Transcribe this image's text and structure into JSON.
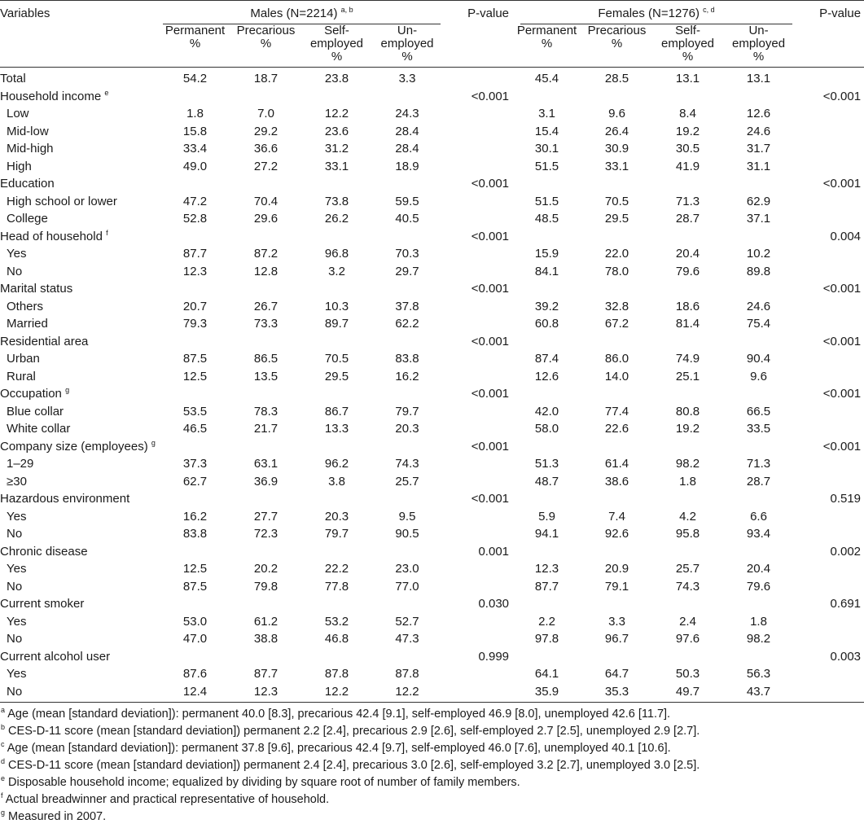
{
  "header": {
    "variables": "Variables",
    "males_group": "Males (N=2214)",
    "males_sup": "a, b",
    "females_group": "Females (N=1276)",
    "females_sup": "c, d",
    "pvalue": "P-value",
    "cols": [
      [
        "Permanent",
        "%"
      ],
      [
        "Precarious",
        "%"
      ],
      [
        "Self-",
        "employed",
        "%"
      ],
      [
        "Un-",
        "employed",
        "%"
      ]
    ]
  },
  "rows": [
    {
      "label": "Total",
      "sub": false,
      "m": [
        "54.2",
        "18.7",
        "23.8",
        "3.3"
      ],
      "mp": "",
      "f": [
        "45.4",
        "28.5",
        "13.1",
        "13.1"
      ],
      "fp": ""
    },
    {
      "label": "Household income",
      "sup": "e",
      "sub": false,
      "m": [
        "",
        "",
        "",
        ""
      ],
      "mp": "<0.001",
      "f": [
        "",
        "",
        "",
        ""
      ],
      "fp": "<0.001"
    },
    {
      "label": "Low",
      "sub": true,
      "m": [
        "1.8",
        "7.0",
        "12.2",
        "24.3"
      ],
      "mp": "",
      "f": [
        "3.1",
        "9.6",
        "8.4",
        "12.6"
      ],
      "fp": ""
    },
    {
      "label": "Mid-low",
      "sub": true,
      "m": [
        "15.8",
        "29.2",
        "23.6",
        "28.4"
      ],
      "mp": "",
      "f": [
        "15.4",
        "26.4",
        "19.2",
        "24.6"
      ],
      "fp": ""
    },
    {
      "label": "Mid-high",
      "sub": true,
      "m": [
        "33.4",
        "36.6",
        "31.2",
        "28.4"
      ],
      "mp": "",
      "f": [
        "30.1",
        "30.9",
        "30.5",
        "31.7"
      ],
      "fp": ""
    },
    {
      "label": "High",
      "sub": true,
      "m": [
        "49.0",
        "27.2",
        "33.1",
        "18.9"
      ],
      "mp": "",
      "f": [
        "51.5",
        "33.1",
        "41.9",
        "31.1"
      ],
      "fp": ""
    },
    {
      "label": "Education",
      "sub": false,
      "m": [
        "",
        "",
        "",
        ""
      ],
      "mp": "<0.001",
      "f": [
        "",
        "",
        "",
        ""
      ],
      "fp": "<0.001"
    },
    {
      "label": "High school or lower",
      "sub": true,
      "m": [
        "47.2",
        "70.4",
        "73.8",
        "59.5"
      ],
      "mp": "",
      "f": [
        "51.5",
        "70.5",
        "71.3",
        "62.9"
      ],
      "fp": ""
    },
    {
      "label": "College",
      "sub": true,
      "m": [
        "52.8",
        "29.6",
        "26.2",
        "40.5"
      ],
      "mp": "",
      "f": [
        "48.5",
        "29.5",
        "28.7",
        "37.1"
      ],
      "fp": ""
    },
    {
      "label": "Head of household",
      "sup": "f",
      "sub": false,
      "m": [
        "",
        "",
        "",
        ""
      ],
      "mp": "<0.001",
      "f": [
        "",
        "",
        "",
        ""
      ],
      "fp": "0.004"
    },
    {
      "label": "Yes",
      "sub": true,
      "m": [
        "87.7",
        "87.2",
        "96.8",
        "70.3"
      ],
      "mp": "",
      "f": [
        "15.9",
        "22.0",
        "20.4",
        "10.2"
      ],
      "fp": ""
    },
    {
      "label": "No",
      "sub": true,
      "m": [
        "12.3",
        "12.8",
        "3.2",
        "29.7"
      ],
      "mp": "",
      "f": [
        "84.1",
        "78.0",
        "79.6",
        "89.8"
      ],
      "fp": ""
    },
    {
      "label": "Marital status",
      "sub": false,
      "m": [
        "",
        "",
        "",
        ""
      ],
      "mp": "<0.001",
      "f": [
        "",
        "",
        "",
        ""
      ],
      "fp": "<0.001"
    },
    {
      "label": "Others",
      "sub": true,
      "m": [
        "20.7",
        "26.7",
        "10.3",
        "37.8"
      ],
      "mp": "",
      "f": [
        "39.2",
        "32.8",
        "18.6",
        "24.6"
      ],
      "fp": ""
    },
    {
      "label": "Married",
      "sub": true,
      "m": [
        "79.3",
        "73.3",
        "89.7",
        "62.2"
      ],
      "mp": "",
      "f": [
        "60.8",
        "67.2",
        "81.4",
        "75.4"
      ],
      "fp": ""
    },
    {
      "label": "Residential area",
      "sub": false,
      "m": [
        "",
        "",
        "",
        ""
      ],
      "mp": "<0.001",
      "f": [
        "",
        "",
        "",
        ""
      ],
      "fp": "<0.001"
    },
    {
      "label": "Urban",
      "sub": true,
      "m": [
        "87.5",
        "86.5",
        "70.5",
        "83.8"
      ],
      "mp": "",
      "f": [
        "87.4",
        "86.0",
        "74.9",
        "90.4"
      ],
      "fp": ""
    },
    {
      "label": "Rural",
      "sub": true,
      "m": [
        "12.5",
        "13.5",
        "29.5",
        "16.2"
      ],
      "mp": "",
      "f": [
        "12.6",
        "14.0",
        "25.1",
        "9.6"
      ],
      "fp": ""
    },
    {
      "label": "Occupation",
      "sup": "g",
      "sub": false,
      "m": [
        "",
        "",
        "",
        ""
      ],
      "mp": "<0.001",
      "f": [
        "",
        "",
        "",
        ""
      ],
      "fp": "<0.001"
    },
    {
      "label": "Blue collar",
      "sub": true,
      "m": [
        "53.5",
        "78.3",
        "86.7",
        "79.7"
      ],
      "mp": "",
      "f": [
        "42.0",
        "77.4",
        "80.8",
        "66.5"
      ],
      "fp": ""
    },
    {
      "label": "White collar",
      "sub": true,
      "m": [
        "46.5",
        "21.7",
        "13.3",
        "20.3"
      ],
      "mp": "",
      "f": [
        "58.0",
        "22.6",
        "19.2",
        "33.5"
      ],
      "fp": ""
    },
    {
      "label": "Company size (employees)",
      "sup": "g",
      "sub": false,
      "m": [
        "",
        "",
        "",
        ""
      ],
      "mp": "<0.001",
      "f": [
        "",
        "",
        "",
        ""
      ],
      "fp": "<0.001"
    },
    {
      "label": "1–29",
      "sub": true,
      "m": [
        "37.3",
        "63.1",
        "96.2",
        "74.3"
      ],
      "mp": "",
      "f": [
        "51.3",
        "61.4",
        "98.2",
        "71.3"
      ],
      "fp": ""
    },
    {
      "label": "≥30",
      "sub": true,
      "m": [
        "62.7",
        "36.9",
        "3.8",
        "25.7"
      ],
      "mp": "",
      "f": [
        "48.7",
        "38.6",
        "1.8",
        "28.7"
      ],
      "fp": ""
    },
    {
      "label": "Hazardous environment",
      "sub": false,
      "m": [
        "",
        "",
        "",
        ""
      ],
      "mp": "<0.001",
      "f": [
        "",
        "",
        "",
        ""
      ],
      "fp": "0.519"
    },
    {
      "label": "Yes",
      "sub": true,
      "m": [
        "16.2",
        "27.7",
        "20.3",
        "9.5"
      ],
      "mp": "",
      "f": [
        "5.9",
        "7.4",
        "4.2",
        "6.6"
      ],
      "fp": ""
    },
    {
      "label": "No",
      "sub": true,
      "m": [
        "83.8",
        "72.3",
        "79.7",
        "90.5"
      ],
      "mp": "",
      "f": [
        "94.1",
        "92.6",
        "95.8",
        "93.4"
      ],
      "fp": ""
    },
    {
      "label": "Chronic disease",
      "sub": false,
      "m": [
        "",
        "",
        "",
        ""
      ],
      "mp": "0.001",
      "f": [
        "",
        "",
        "",
        ""
      ],
      "fp": "0.002"
    },
    {
      "label": "Yes",
      "sub": true,
      "m": [
        "12.5",
        "20.2",
        "22.2",
        "23.0"
      ],
      "mp": "",
      "f": [
        "12.3",
        "20.9",
        "25.7",
        "20.4"
      ],
      "fp": ""
    },
    {
      "label": "No",
      "sub": true,
      "m": [
        "87.5",
        "79.8",
        "77.8",
        "77.0"
      ],
      "mp": "",
      "f": [
        "87.7",
        "79.1",
        "74.3",
        "79.6"
      ],
      "fp": ""
    },
    {
      "label": "Current smoker",
      "sub": false,
      "m": [
        "",
        "",
        "",
        ""
      ],
      "mp": "0.030",
      "f": [
        "",
        "",
        "",
        ""
      ],
      "fp": "0.691"
    },
    {
      "label": "Yes",
      "sub": true,
      "m": [
        "53.0",
        "61.2",
        "53.2",
        "52.7"
      ],
      "mp": "",
      "f": [
        "2.2",
        "3.3",
        "2.4",
        "1.8"
      ],
      "fp": ""
    },
    {
      "label": "No",
      "sub": true,
      "m": [
        "47.0",
        "38.8",
        "46.8",
        "47.3"
      ],
      "mp": "",
      "f": [
        "97.8",
        "96.7",
        "97.6",
        "98.2"
      ],
      "fp": ""
    },
    {
      "label": "Current alcohol user",
      "sub": false,
      "m": [
        "",
        "",
        "",
        ""
      ],
      "mp": "0.999",
      "f": [
        "",
        "",
        "",
        ""
      ],
      "fp": "0.003"
    },
    {
      "label": "Yes",
      "sub": true,
      "m": [
        "87.6",
        "87.7",
        "87.8",
        "87.8"
      ],
      "mp": "",
      "f": [
        "64.1",
        "64.7",
        "50.3",
        "56.3"
      ],
      "fp": ""
    },
    {
      "label": "No",
      "sub": true,
      "m": [
        "12.4",
        "12.3",
        "12.2",
        "12.2"
      ],
      "mp": "",
      "f": [
        "35.9",
        "35.3",
        "49.7",
        "43.7"
      ],
      "fp": ""
    }
  ],
  "footnotes": [
    {
      "mark": "a",
      "text": "Age (mean [standard deviation]): permanent 40.0 [8.3], precarious 42.4 [9.1], self-employed 46.9 [8.0], unemployed 42.6 [11.7]."
    },
    {
      "mark": "b",
      "text": "CES-D-11 score (mean [standard deviation]) permanent 2.2 [2.4], precarious 2.9 [2.6], self-employed 2.7 [2.5], unemployed 2.9 [2.7]."
    },
    {
      "mark": "c",
      "text": "Age (mean [standard deviation]): permanent 37.8 [9.6], precarious 42.4 [9.7], self-employed 46.0 [7.6], unemployed 40.1 [10.6]."
    },
    {
      "mark": "d",
      "text": "CES-D-11 score (mean [standard deviation]) permanent 2.4 [2.4], precarious 3.0 [2.6], self-employed 3.2 [2.7], unemployed 3.0 [2.5]."
    },
    {
      "mark": "e",
      "text": "Disposable household income; equalized by dividing by square root of number of family members."
    },
    {
      "mark": "f",
      "text": "Actual breadwinner and practical representative of household."
    },
    {
      "mark": "g",
      "text": "Measured in 2007."
    }
  ]
}
